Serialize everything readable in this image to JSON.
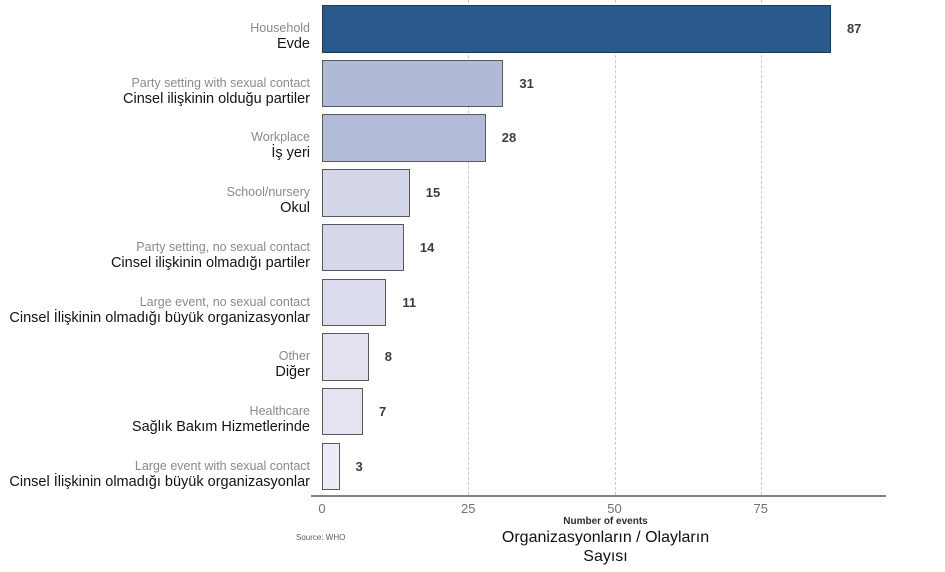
{
  "chart_data": {
    "type": "bar",
    "orientation": "horizontal",
    "title": "",
    "bars": [
      {
        "label_en": "Household",
        "label_tr": "Evde",
        "value": 87,
        "color": "#2A5A8C",
        "border_color": "#1A3A5C"
      },
      {
        "label_en": "Party setting with sexual contact",
        "label_tr": "Cinsel ilişkinin olduğu partiler",
        "value": 31,
        "color": "#B0BAD6",
        "border_color": "#595959"
      },
      {
        "label_en": "Workplace",
        "label_tr": "İş yeri",
        "value": 28,
        "color": "#B1BBD7",
        "border_color": "#595959"
      },
      {
        "label_en": "School/nursery",
        "label_tr": "Okul",
        "value": 15,
        "color": "#D4D7E9",
        "border_color": "#595959"
      },
      {
        "label_en": "Party setting, no sexual contact",
        "label_tr": "Cinsel ilişkinin olmadığı partiler",
        "value": 14,
        "color": "#D6D8EA",
        "border_color": "#595959"
      },
      {
        "label_en": "Large event, no sexual contact",
        "label_tr": "Cinsel İlişkinin olmadığı büyük organizasyonlar",
        "value": 11,
        "color": "#DBDCED",
        "border_color": "#595959"
      },
      {
        "label_en": "Other",
        "label_tr": "Diğer",
        "value": 8,
        "color": "#E3E1F0",
        "border_color": "#595959"
      },
      {
        "label_en": "Healthcare",
        "label_tr": "Sağlık Bakım Hizmetlerinde",
        "value": 7,
        "color": "#E5E3F1",
        "border_color": "#595959"
      },
      {
        "label_en": "Large event with sexual contact",
        "label_tr": "Cinsel İlişkinin olmadığı büyük organizasyonlar",
        "value": 3,
        "color": "#EFEBF6",
        "border_color": "#595959"
      }
    ],
    "x_ticks": [
      0,
      25,
      50,
      75
    ],
    "xlim": [
      0,
      97
    ],
    "grid": {
      "lines_at": [
        25,
        50,
        75
      ],
      "style": "dashed",
      "color": "#C9C9C9"
    },
    "xlabel_en": "Number of events",
    "xlabel_tr_line1": "Organizasyonların / Olayların",
    "xlabel_tr_line2": "Sayısı",
    "source": "Source: WHO",
    "legend": null,
    "colors": {
      "axis_line": "#848484",
      "tick_label": "#707070",
      "category_label_en": "#8A8A8A",
      "category_label_tr": "#141414",
      "value_label": "#3D3D3D"
    }
  }
}
